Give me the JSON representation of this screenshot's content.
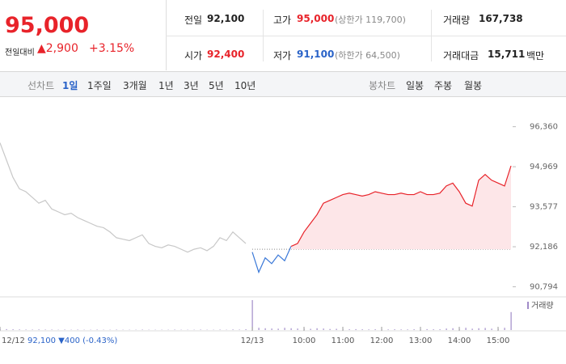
{
  "header": {
    "price": "95,000",
    "change_label": "전일대비",
    "change": "▲2,900",
    "change_pct": "+3.15%"
  },
  "stats": [
    {
      "label": "전일",
      "value": "92,100"
    },
    {
      "label": "고가",
      "value": "95,000",
      "note": "(상한가 119,700)"
    },
    {
      "label": "거래량",
      "value": "167,738"
    },
    {
      "label": "시가",
      "value": "92,400"
    },
    {
      "label": "저가",
      "value": "91,100",
      "note": "(하한가 64,500)"
    },
    {
      "label": "거래대금",
      "value": "15,711",
      "unit": "백만"
    }
  ],
  "tabs": {
    "line_chart": "선차트",
    "periods": [
      "1일",
      "1주일",
      "3개월",
      "1년",
      "3년",
      "5년",
      "10년"
    ],
    "candle_chart": "봉차트",
    "candles": [
      "일봉",
      "주봉",
      "월봉"
    ]
  },
  "chart_data": {
    "type": "line",
    "categories": [
      "12/12",
      null,
      null,
      null,
      null,
      null,
      null,
      null,
      null,
      null,
      null,
      null,
      null,
      null,
      null,
      null,
      null,
      null,
      null,
      null,
      null,
      null,
      null,
      null,
      null,
      null,
      null,
      null,
      null,
      null,
      null,
      null,
      null,
      null,
      null,
      null,
      null,
      null,
      null,
      "12/13",
      null,
      null,
      null,
      null,
      null,
      null,
      null,
      "10:00",
      null,
      null,
      null,
      null,
      null,
      "11:00",
      null,
      null,
      null,
      null,
      null,
      "12:00",
      null,
      null,
      null,
      null,
      null,
      "13:00",
      null,
      null,
      null,
      null,
      null,
      "14:00",
      null,
      null,
      null,
      null,
      null,
      "15:00",
      null,
      null
    ],
    "series": [
      {
        "color": "#c8c8c8",
        "values": [
          95800,
          95200,
          94600,
          94200,
          94100,
          93900,
          93700,
          93800,
          93500,
          93400,
          93300,
          93350,
          93200,
          93100,
          93000,
          92900,
          92850,
          92700,
          92500,
          92450,
          92400,
          92500,
          92600,
          92300,
          92200,
          92150,
          92250,
          92200,
          92100,
          92000,
          92100,
          92150,
          92050,
          92200,
          92500,
          92400,
          92700,
          92500,
          92300,
          null,
          null,
          null,
          null,
          null,
          null,
          null,
          null,
          null,
          null,
          null,
          null,
          null,
          null,
          null,
          null,
          null,
          null,
          null,
          null,
          null,
          null,
          null,
          null,
          null,
          null,
          null,
          null,
          null,
          null,
          null,
          null,
          null,
          null,
          null,
          null,
          null,
          null,
          null,
          null,
          null
        ]
      },
      {
        "color": "#3a78d8",
        "values": [
          null,
          null,
          null,
          null,
          null,
          null,
          null,
          null,
          null,
          null,
          null,
          null,
          null,
          null,
          null,
          null,
          null,
          null,
          null,
          null,
          null,
          null,
          null,
          null,
          null,
          null,
          null,
          null,
          null,
          null,
          null,
          null,
          null,
          null,
          null,
          null,
          null,
          null,
          null,
          92000,
          91300,
          91800,
          91600,
          91900,
          91700,
          92200,
          null,
          null,
          null,
          null,
          null,
          null,
          null,
          null,
          null,
          null,
          null,
          null,
          null,
          null,
          null,
          null,
          null,
          null,
          null,
          null,
          null,
          null,
          null,
          null,
          null,
          null,
          null,
          null,
          null,
          null,
          null,
          null,
          null,
          null
        ]
      },
      {
        "color": "#e8232a",
        "fill": "#fde6e8",
        "values": [
          null,
          null,
          null,
          null,
          null,
          null,
          null,
          null,
          null,
          null,
          null,
          null,
          null,
          null,
          null,
          null,
          null,
          null,
          null,
          null,
          null,
          null,
          null,
          null,
          null,
          null,
          null,
          null,
          null,
          null,
          null,
          null,
          null,
          null,
          null,
          null,
          null,
          null,
          null,
          null,
          null,
          null,
          null,
          null,
          null,
          92200,
          92300,
          92700,
          93000,
          93300,
          93700,
          93800,
          93900,
          94000,
          94050,
          94000,
          93950,
          94000,
          94100,
          94050,
          94000,
          94000,
          94050,
          94000,
          94000,
          94100,
          94000,
          94000,
          94050,
          94300,
          94400,
          94100,
          93700,
          93600,
          94500,
          94700,
          94500,
          94400,
          94300,
          95000
        ]
      }
    ],
    "volume": {
      "name": "거래량",
      "color": "#a08bc8",
      "values": [
        800,
        600,
        500,
        400,
        300,
        300,
        400,
        300,
        300,
        200,
        300,
        200,
        300,
        200,
        200,
        300,
        200,
        200,
        300,
        200,
        200,
        200,
        300,
        200,
        200,
        200,
        200,
        300,
        200,
        200,
        200,
        300,
        200,
        200,
        300,
        200,
        400,
        300,
        500,
        20000,
        1500,
        1200,
        1000,
        900,
        1500,
        1200,
        1000,
        900,
        800,
        1200,
        1000,
        700,
        800,
        600,
        500,
        600,
        500,
        400,
        500,
        400,
        400,
        500,
        400,
        400,
        500,
        400,
        600,
        500,
        500,
        1000,
        1200,
        800,
        1500,
        900,
        1200,
        1400,
        900,
        800,
        1500,
        12000
      ]
    },
    "baseline": 92100,
    "prev_day_label": "92,100 ▼400 (-0.43%)",
    "ylim": [
      90500,
      97250
    ],
    "yticks": [
      {
        "value": 90794,
        "label": "90,794"
      },
      {
        "value": 92186,
        "label": "92,186"
      },
      {
        "value": 93577,
        "label": "93,577"
      },
      {
        "value": 94969,
        "label": "94,969"
      },
      {
        "value": 96360,
        "label": "96,360"
      }
    ]
  }
}
